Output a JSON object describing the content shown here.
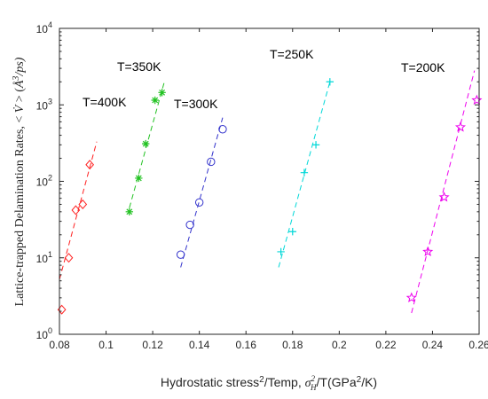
{
  "chart_data": {
    "type": "scatter",
    "title": "",
    "xlabel": {
      "main": "Hydrostatic stress",
      "sup1": "2",
      "mid": "/Temp, ",
      "sigma": "σ",
      "sigma_sup": "2",
      "sigma_sub": "H",
      "tail": "/T(GPa",
      "sup2": "2",
      "end": "/K)"
    },
    "ylabel": {
      "main": "Lattice-trapped Delamination Rates, < ",
      "vdot": "V̇",
      "mid": " > (",
      "angstrom": "Å",
      "sup": "3",
      "end": "/ps)"
    },
    "xlim": [
      0.08,
      0.26
    ],
    "ylim": [
      1,
      10000
    ],
    "yscale": "log",
    "x_ticks": [
      "0.08",
      "0.1",
      "0.12",
      "0.14",
      "0.16",
      "0.18",
      "0.2",
      "0.22",
      "0.24",
      "0.26"
    ],
    "x_tick_values": [
      0.08,
      0.1,
      0.12,
      0.14,
      0.16,
      0.18,
      0.2,
      0.22,
      0.24,
      0.26
    ],
    "y_ticks": [
      {
        "value": 1,
        "exp": "0"
      },
      {
        "value": 10,
        "exp": "1"
      },
      {
        "value": 100,
        "exp": "2"
      },
      {
        "value": 1000,
        "exp": "3"
      },
      {
        "value": 10000,
        "exp": "4"
      }
    ],
    "y_tick_base": "10",
    "grid": false,
    "series": [
      {
        "name": "T=400K",
        "color": "#ff2020",
        "marker": "diamond",
        "points": [
          [
            0.081,
            2.1
          ],
          [
            0.084,
            10
          ],
          [
            0.087,
            42
          ],
          [
            0.09,
            50
          ],
          [
            0.093,
            165
          ]
        ],
        "fit": [
          [
            0.08,
            5.2
          ],
          [
            0.096,
            330
          ]
        ]
      },
      {
        "name": "T=350K",
        "color": "#22c222",
        "marker": "asterisk",
        "points": [
          [
            0.11,
            40
          ],
          [
            0.114,
            110
          ],
          [
            0.117,
            310
          ],
          [
            0.121,
            1150
          ],
          [
            0.124,
            1450
          ]
        ],
        "fit": [
          [
            0.11,
            45
          ],
          [
            0.125,
            2000
          ]
        ]
      },
      {
        "name": "T=300K",
        "color": "#3333cc",
        "marker": "circle",
        "points": [
          [
            0.132,
            11
          ],
          [
            0.136,
            27
          ],
          [
            0.14,
            53
          ],
          [
            0.145,
            180
          ],
          [
            0.15,
            480
          ]
        ],
        "fit": [
          [
            0.132,
            7.5
          ],
          [
            0.15,
            680
          ]
        ]
      },
      {
        "name": "T=250K",
        "color": "#00d8d8",
        "marker": "plus",
        "points": [
          [
            0.175,
            12
          ],
          [
            0.18,
            22
          ],
          [
            0.185,
            130
          ],
          [
            0.19,
            300
          ],
          [
            0.196,
            2000
          ]
        ],
        "fit": [
          [
            0.174,
            7.5
          ],
          [
            0.196,
            2000
          ]
        ]
      },
      {
        "name": "T=200K",
        "color": "#ee00ee",
        "marker": "pentagram",
        "points": [
          [
            0.231,
            3.0
          ],
          [
            0.238,
            12
          ],
          [
            0.245,
            62
          ],
          [
            0.252,
            510
          ],
          [
            0.259,
            1150
          ]
        ],
        "fit": [
          [
            0.231,
            1.9
          ],
          [
            0.258,
            2800
          ]
        ]
      }
    ]
  }
}
